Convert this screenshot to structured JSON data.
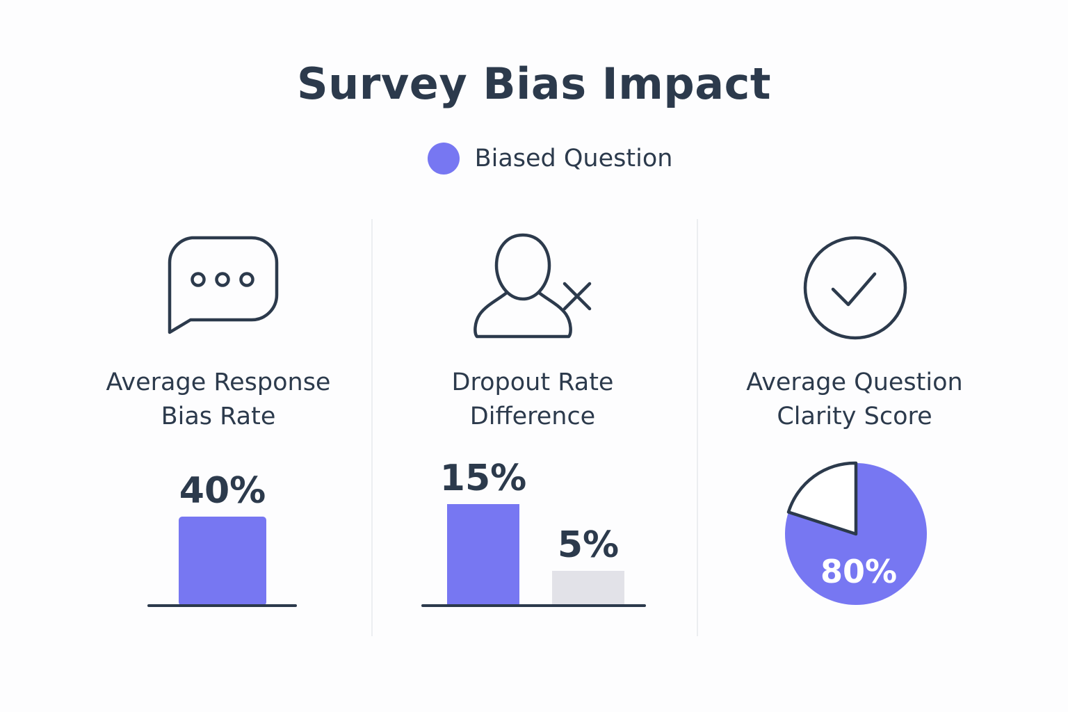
{
  "title": "Survey Bias Impact",
  "legend": {
    "label": "Biased Question",
    "color": "#7777f2"
  },
  "colors": {
    "accent": "#7777f2",
    "neutral": "#e2e2e8",
    "ink": "#2c3a4c",
    "divider": "#eceef1"
  },
  "panels": [
    {
      "icon": "speech-bubble-icon",
      "label": "Average Response\nBias Rate"
    },
    {
      "icon": "user-remove-icon",
      "label": "Dropout Rate\nDifference"
    },
    {
      "icon": "check-circle-icon",
      "label": "Average Question\nClarity Score"
    }
  ],
  "chart_data": [
    {
      "type": "bar",
      "title": "Average Response Bias Rate",
      "categories": [
        "Biased Question"
      ],
      "values": [
        40
      ],
      "data_labels": [
        "40%"
      ],
      "unit": "%"
    },
    {
      "type": "bar",
      "title": "Dropout Rate Difference",
      "categories": [
        "Biased Question",
        ""
      ],
      "values": [
        15,
        5
      ],
      "data_labels": [
        "15%",
        "5%"
      ],
      "unit": "%"
    },
    {
      "type": "pie",
      "title": "Average Question Clarity Score",
      "slices": [
        {
          "label": "80%",
          "value": 80
        },
        {
          "label": "",
          "value": 20
        }
      ],
      "unit": "%"
    }
  ]
}
